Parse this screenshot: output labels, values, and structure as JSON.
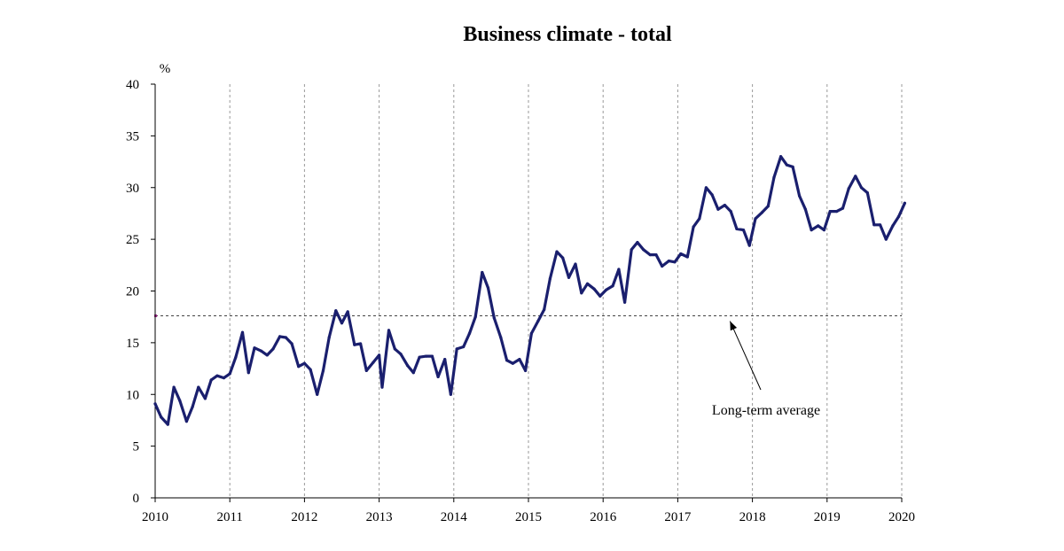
{
  "chart_data": {
    "type": "line",
    "title": "Business climate - total",
    "ylabel": "%",
    "xlabel": "",
    "xlim": [
      2010,
      2020
    ],
    "ylim": [
      0,
      40
    ],
    "x_ticks": [
      "2010",
      "2011",
      "2012",
      "2013",
      "2014",
      "2015",
      "2016",
      "2017",
      "2018",
      "2019",
      "2020"
    ],
    "y_ticks": [
      "0",
      "5",
      "10",
      "15",
      "20",
      "25",
      "30",
      "35",
      "40"
    ],
    "grid": "vertical dashed",
    "series": [
      {
        "color": "#1a1f6e",
        "points": [
          [
            2010.0,
            9.1
          ],
          [
            2010.08,
            7.8
          ],
          [
            2010.17,
            7.1
          ],
          [
            2010.25,
            10.7
          ],
          [
            2010.33,
            9.4
          ],
          [
            2010.42,
            7.4
          ],
          [
            2010.5,
            8.8
          ],
          [
            2010.58,
            10.7
          ],
          [
            2010.67,
            9.6
          ],
          [
            2010.75,
            11.4
          ],
          [
            2010.83,
            11.8
          ],
          [
            2010.92,
            11.6
          ],
          [
            2011.0,
            12.0
          ],
          [
            2011.08,
            13.6
          ],
          [
            2011.17,
            16.0
          ],
          [
            2011.25,
            12.1
          ],
          [
            2011.33,
            14.5
          ],
          [
            2011.42,
            14.2
          ],
          [
            2011.5,
            13.8
          ],
          [
            2011.58,
            14.4
          ],
          [
            2011.67,
            15.6
          ],
          [
            2011.75,
            15.5
          ],
          [
            2011.83,
            14.9
          ],
          [
            2011.92,
            12.7
          ],
          [
            2012.0,
            13.0
          ],
          [
            2012.08,
            12.4
          ],
          [
            2012.17,
            10.0
          ],
          [
            2012.25,
            12.3
          ],
          [
            2012.33,
            15.5
          ],
          [
            2012.42,
            18.1
          ],
          [
            2012.5,
            16.9
          ],
          [
            2012.58,
            18.0
          ],
          [
            2012.67,
            14.8
          ],
          [
            2012.75,
            14.9
          ],
          [
            2012.83,
            12.3
          ],
          [
            2012.92,
            13.1
          ],
          [
            2013.0,
            13.8
          ],
          [
            2013.04,
            10.7
          ],
          [
            2013.13,
            16.2
          ],
          [
            2013.21,
            14.4
          ],
          [
            2013.29,
            13.9
          ],
          [
            2013.38,
            12.8
          ],
          [
            2013.46,
            12.1
          ],
          [
            2013.54,
            13.6
          ],
          [
            2013.63,
            13.7
          ],
          [
            2013.71,
            13.7
          ],
          [
            2013.79,
            11.7
          ],
          [
            2013.88,
            13.4
          ],
          [
            2013.96,
            10.0
          ],
          [
            2014.04,
            14.4
          ],
          [
            2014.13,
            14.6
          ],
          [
            2014.21,
            15.9
          ],
          [
            2014.29,
            17.5
          ],
          [
            2014.38,
            21.8
          ],
          [
            2014.46,
            20.3
          ],
          [
            2014.54,
            17.4
          ],
          [
            2014.63,
            15.5
          ],
          [
            2014.71,
            13.3
          ],
          [
            2014.79,
            13.0
          ],
          [
            2014.88,
            13.4
          ],
          [
            2014.96,
            12.3
          ],
          [
            2015.04,
            15.9
          ],
          [
            2015.13,
            17.1
          ],
          [
            2015.21,
            18.2
          ],
          [
            2015.29,
            21.2
          ],
          [
            2015.38,
            23.8
          ],
          [
            2015.46,
            23.2
          ],
          [
            2015.54,
            21.3
          ],
          [
            2015.63,
            22.6
          ],
          [
            2015.71,
            19.8
          ],
          [
            2015.79,
            20.7
          ],
          [
            2015.88,
            20.2
          ],
          [
            2015.96,
            19.5
          ],
          [
            2016.04,
            20.1
          ],
          [
            2016.13,
            20.5
          ],
          [
            2016.21,
            22.1
          ],
          [
            2016.29,
            18.9
          ],
          [
            2016.38,
            24.0
          ],
          [
            2016.46,
            24.7
          ],
          [
            2016.54,
            24.0
          ],
          [
            2016.63,
            23.5
          ],
          [
            2016.71,
            23.5
          ],
          [
            2016.79,
            22.4
          ],
          [
            2016.88,
            22.9
          ],
          [
            2016.96,
            22.8
          ],
          [
            2017.04,
            23.6
          ],
          [
            2017.13,
            23.3
          ],
          [
            2017.21,
            26.2
          ],
          [
            2017.29,
            27.0
          ],
          [
            2017.38,
            30.0
          ],
          [
            2017.46,
            29.3
          ],
          [
            2017.54,
            27.9
          ],
          [
            2017.63,
            28.3
          ],
          [
            2017.71,
            27.7
          ],
          [
            2017.79,
            26.0
          ],
          [
            2017.88,
            25.9
          ],
          [
            2017.96,
            24.4
          ],
          [
            2018.04,
            27.0
          ],
          [
            2018.13,
            27.6
          ],
          [
            2018.21,
            28.2
          ],
          [
            2018.29,
            31.0
          ],
          [
            2018.38,
            33.0
          ],
          [
            2018.46,
            32.2
          ],
          [
            2018.54,
            32.0
          ],
          [
            2018.63,
            29.2
          ],
          [
            2018.71,
            27.9
          ],
          [
            2018.79,
            25.9
          ],
          [
            2018.88,
            26.3
          ],
          [
            2018.96,
            25.9
          ],
          [
            2019.04,
            27.7
          ],
          [
            2019.13,
            27.7
          ],
          [
            2019.21,
            28.0
          ],
          [
            2019.29,
            29.9
          ],
          [
            2019.38,
            31.1
          ],
          [
            2019.46,
            30.0
          ],
          [
            2019.54,
            29.5
          ],
          [
            2019.63,
            26.4
          ],
          [
            2019.71,
            26.4
          ],
          [
            2019.79,
            25.0
          ],
          [
            2019.88,
            26.3
          ],
          [
            2019.96,
            27.2
          ],
          [
            2020.04,
            28.5
          ]
        ]
      }
    ],
    "reference_line": {
      "value": 17.6,
      "style": "dashed",
      "label": "Long-term average"
    }
  }
}
